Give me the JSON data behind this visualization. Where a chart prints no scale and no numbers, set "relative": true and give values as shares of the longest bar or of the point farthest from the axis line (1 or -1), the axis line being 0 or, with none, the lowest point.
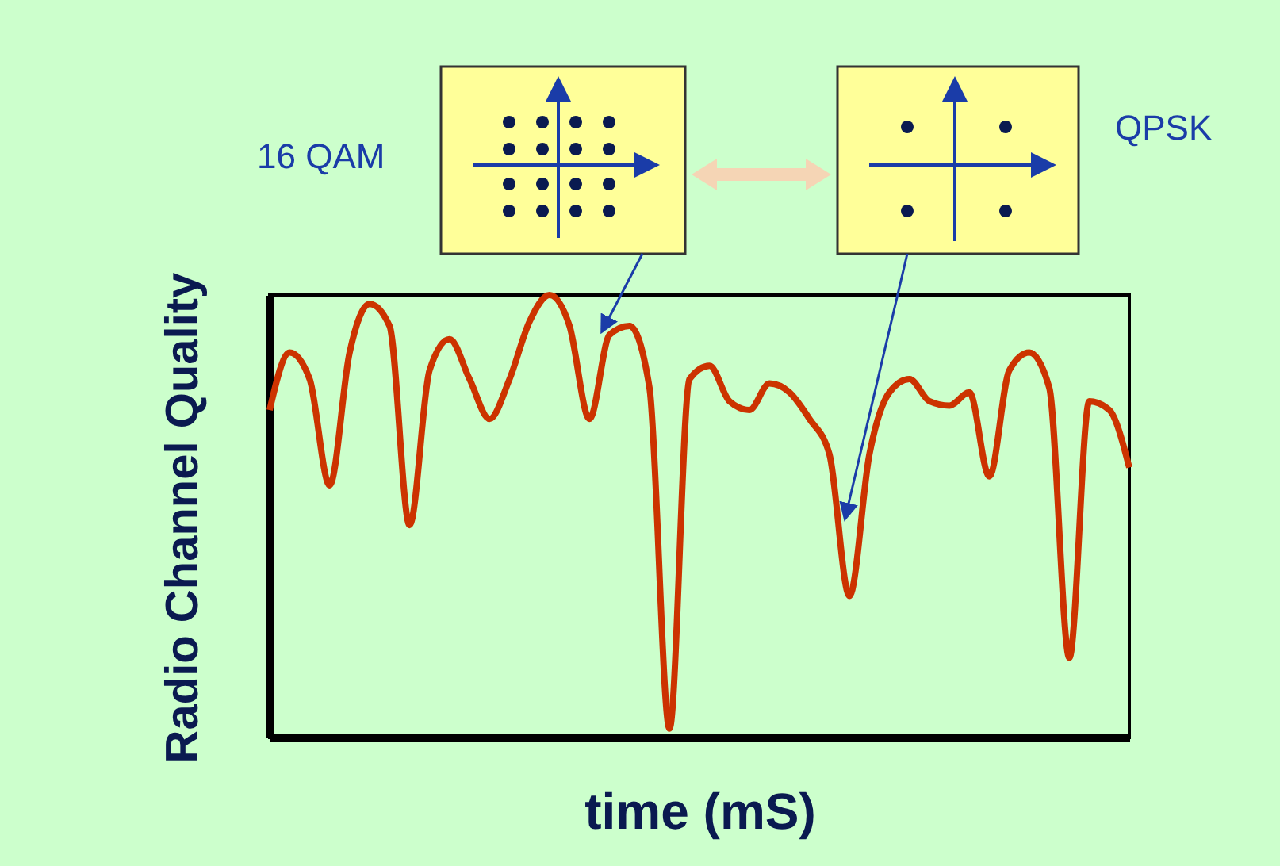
{
  "chart_data": {
    "type": "line",
    "relative": true,
    "xlabel": "time (mS)",
    "ylabel": "Radio Channel Quality",
    "annotations": [
      "16 QAM",
      "QPSK"
    ],
    "categories": [
      null,
      null,
      null,
      null,
      null,
      null,
      null,
      null,
      null,
      null,
      null,
      null,
      null,
      null,
      null,
      null,
      null,
      null,
      null,
      null,
      null,
      null,
      null,
      null,
      null,
      null,
      null,
      null,
      null,
      null,
      null,
      null,
      null,
      null,
      null,
      null,
      null,
      null,
      null,
      null,
      null,
      null,
      null,
      null
    ],
    "series": [
      {
        "color": "#cc3300",
        "values": [
          0.74,
          0.87,
          0.81,
          0.57,
          0.87,
          0.98,
          0.93,
          0.48,
          0.83,
          0.9,
          0.81,
          0.72,
          0.81,
          0.94,
          1,
          0.93,
          0.72,
          0.91,
          0.93,
          0.79,
          0.02,
          0.81,
          0.84,
          0.76,
          0.74,
          0.8,
          0.78,
          0.72,
          0.64,
          0.32,
          0.64,
          0.78,
          0.81,
          0.76,
          0.75,
          0.78,
          0.59,
          0.83,
          0.87,
          0.79,
          0.18,
          0.76,
          0.74,
          0.61
        ]
      }
    ],
    "grid": false,
    "marker": "none",
    "line_style": "solid"
  }
}
